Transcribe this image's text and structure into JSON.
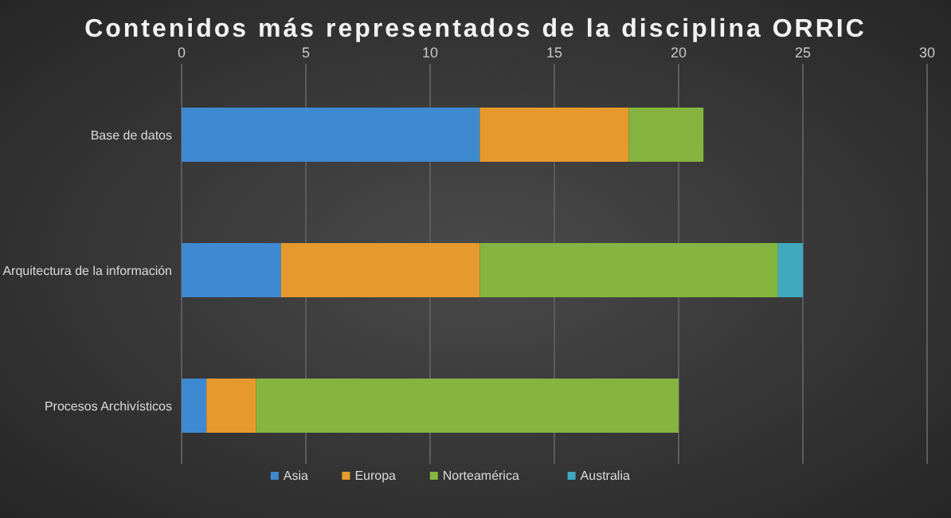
{
  "chart_data": {
    "type": "bar",
    "orientation": "horizontal",
    "stacked": true,
    "title": "Contenidos más representados de la disciplina ORRIC",
    "categories": [
      "Base de datos",
      "Arquitectura de la información",
      "Procesos Archivísticos"
    ],
    "series": [
      {
        "name": "Asia",
        "color": "#3e8ad0",
        "values": [
          12,
          4,
          1
        ]
      },
      {
        "name": "Europa",
        "color": "#e69a2e",
        "values": [
          6,
          8,
          2
        ]
      },
      {
        "name": "Norteamérica",
        "color": "#86b440",
        "values": [
          3,
          12,
          17
        ]
      },
      {
        "name": "Australia",
        "color": "#3ea9bf",
        "values": [
          null,
          1,
          null
        ]
      }
    ],
    "xlim": [
      0,
      30
    ],
    "xticks": [
      0,
      5,
      10,
      15,
      20,
      25,
      30
    ],
    "grid": "x",
    "legend": "bottom"
  }
}
